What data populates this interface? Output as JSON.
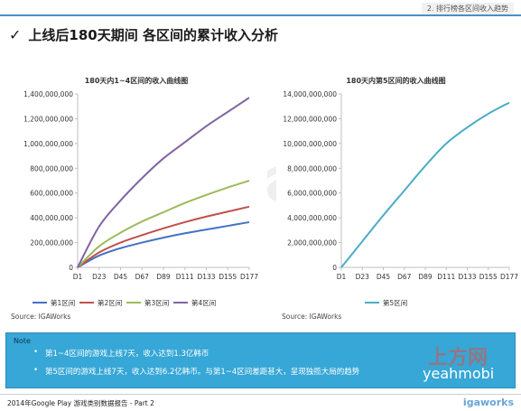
{
  "header": {
    "section_label": "2. 排行榜各区间收入趋势",
    "title": "上线后180天期间 各区间的累计收入分析"
  },
  "chart_data": [
    {
      "type": "line",
      "title": "180天内1~4区间的收入曲线图",
      "x": [
        "D1",
        "D23",
        "D45",
        "D67",
        "D89",
        "D111",
        "D133",
        "D155",
        "D177"
      ],
      "y_ticks": [
        "0",
        "200,000,000",
        "400,000,000",
        "600,000,000",
        "800,000,000",
        "1,000,000,000",
        "1,200,000,000",
        "1,400,000,000"
      ],
      "ylim": [
        0,
        1400000000
      ],
      "grid": false,
      "legend": "bottom",
      "series": [
        {
          "name": "第1区间",
          "color": "#4472c4",
          "values": [
            0,
            95000000,
            155000000,
            200000000,
            240000000,
            275000000,
            305000000,
            335000000,
            365000000
          ]
        },
        {
          "name": "第2区间",
          "color": "#c0504d",
          "values": [
            0,
            120000000,
            200000000,
            260000000,
            315000000,
            365000000,
            410000000,
            450000000,
            490000000
          ]
        },
        {
          "name": "第3区间",
          "color": "#9bbb59",
          "values": [
            0,
            170000000,
            280000000,
            370000000,
            445000000,
            520000000,
            585000000,
            645000000,
            700000000
          ]
        },
        {
          "name": "第4区间",
          "color": "#8064a2",
          "values": [
            0,
            330000000,
            540000000,
            720000000,
            880000000,
            1010000000,
            1140000000,
            1255000000,
            1370000000
          ]
        }
      ],
      "source": "Source: IGAWorks"
    },
    {
      "type": "line",
      "title": "180天内第5区间的收入曲线图",
      "x": [
        "D1",
        "D23",
        "D45",
        "D67",
        "D89",
        "D111",
        "D133",
        "D155",
        "D177"
      ],
      "y_ticks": [
        "0",
        "2,000,000,000",
        "4,000,000,000",
        "6,000,000,000",
        "8,000,000,000",
        "10,000,000,000",
        "12,000,000,000",
        "14,000,000,000"
      ],
      "ylim": [
        0,
        14000000000
      ],
      "grid": false,
      "legend": "bottom",
      "series": [
        {
          "name": "第5区间",
          "color": "#4bacc6",
          "values": [
            0,
            2100000000,
            4200000000,
            6200000000,
            8200000000,
            10000000000,
            11300000000,
            12400000000,
            13300000000
          ]
        }
      ],
      "source": "Source: IGAWorks"
    }
  ],
  "note": {
    "label": "Note",
    "items": [
      "第1~4区间的游戏上线7天，收入达到1.3亿韩币",
      "第5区间的游戏上线7天，收入达到6.2亿韩币。与第1~4区间差距甚大，呈现独揽大局的趋势"
    ]
  },
  "footer": {
    "text": "2014年Google Play 游戏类别数据报告 - Part 2",
    "brand": "igaworks"
  },
  "watermarks": {
    "main": "igaworks",
    "site": "上方网",
    "site_url": "yeahmobi"
  }
}
